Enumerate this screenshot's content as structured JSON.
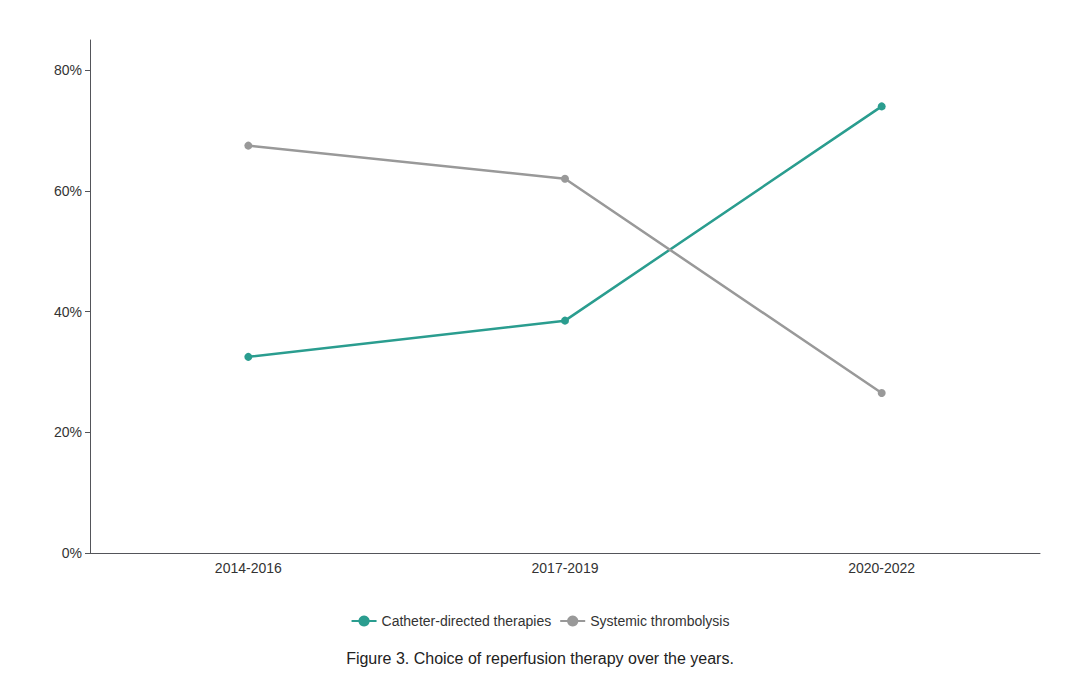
{
  "chart_data": {
    "type": "line",
    "title": "Figure 3. Choice of reperfusion therapy over the years.",
    "categories": [
      "2014-2016",
      "2017-2019",
      "2020-2022"
    ],
    "series": [
      {
        "name": "Catheter-directed therapies",
        "color": "#2a9d8f",
        "values": [
          32.5,
          38.5,
          74.0
        ],
        "marker": "circle"
      },
      {
        "name": "Systemic thrombolysis",
        "color": "#999999",
        "values": [
          67.5,
          62.0,
          26.5
        ],
        "marker": "circle"
      }
    ],
    "ylim": [
      0,
      85
    ],
    "yticks": [
      {
        "value": 0,
        "label": "0%"
      },
      {
        "value": 20,
        "label": "20%"
      },
      {
        "value": 40,
        "label": "40%"
      },
      {
        "value": 60,
        "label": "60%"
      },
      {
        "value": 80,
        "label": "80%"
      }
    ],
    "grid": false,
    "legend": "bottom"
  }
}
